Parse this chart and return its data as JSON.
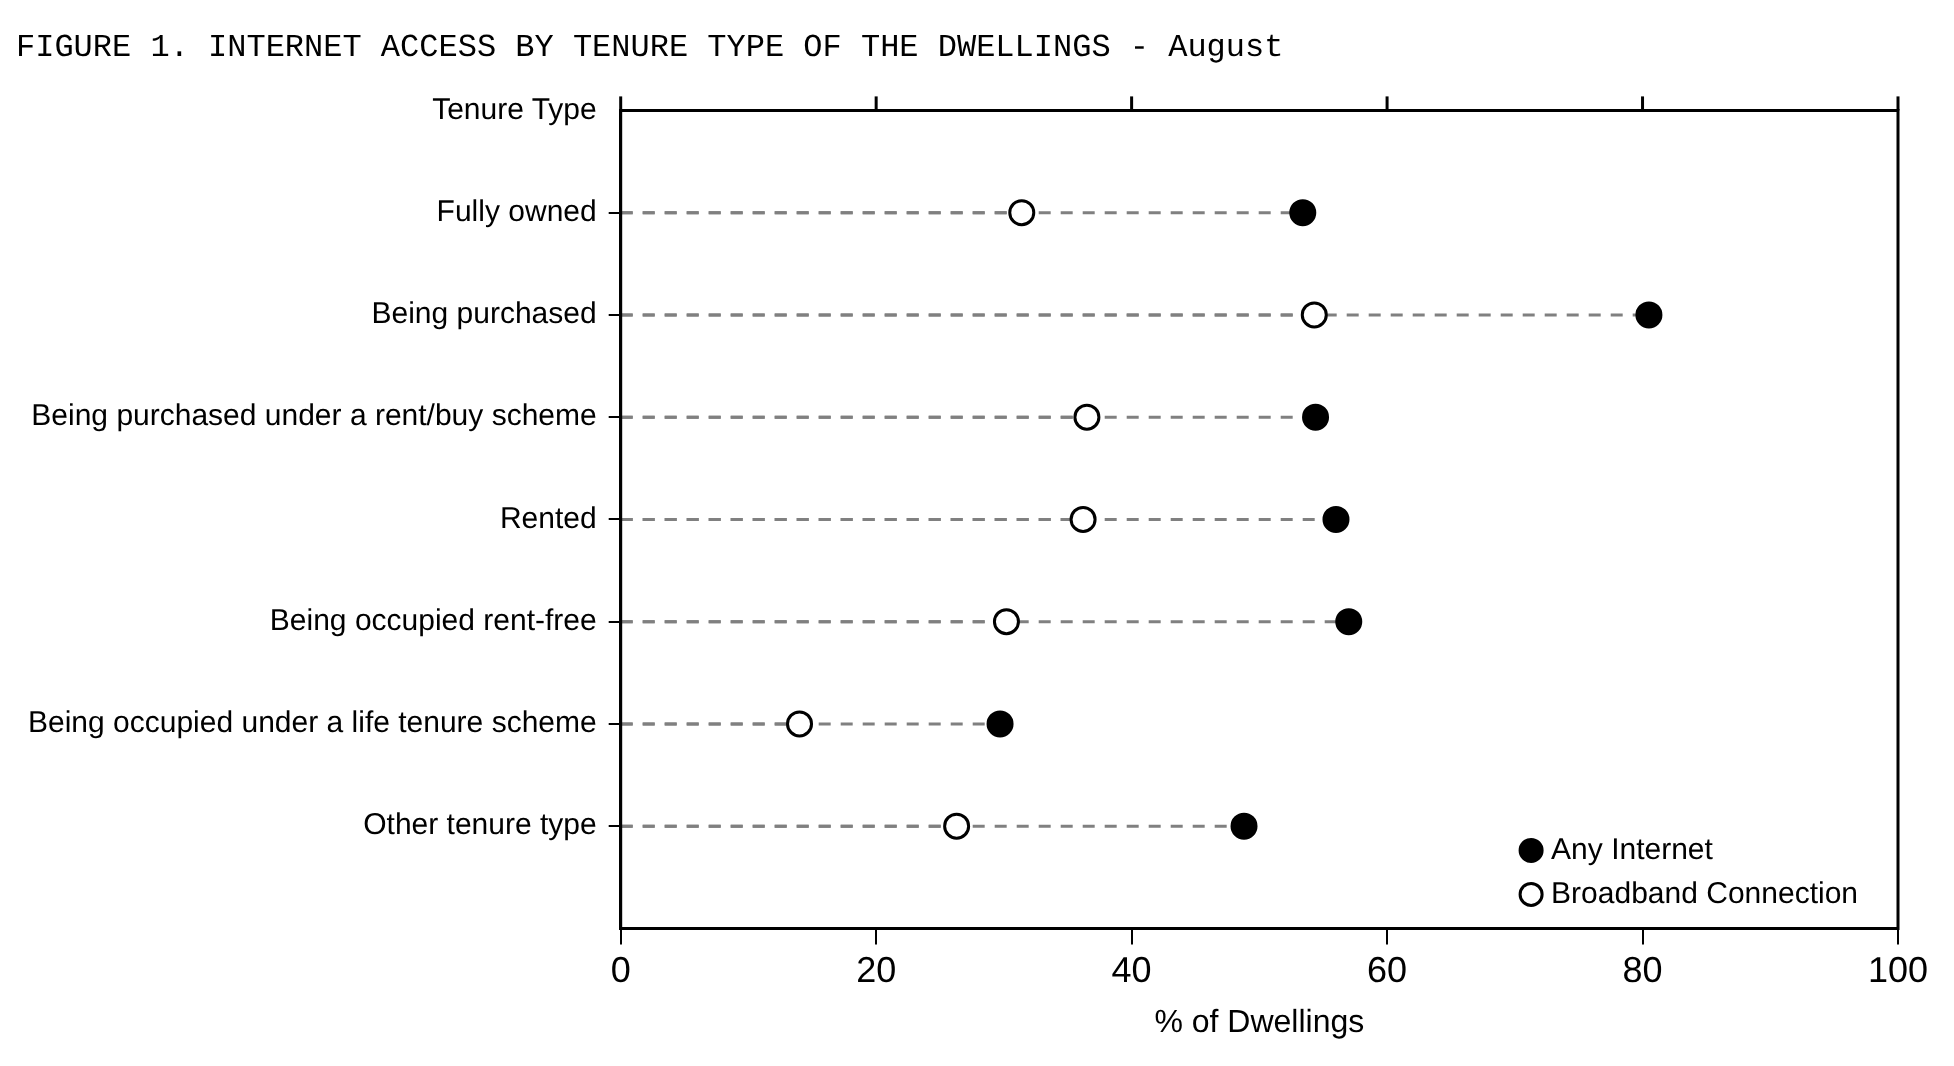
{
  "chart_data": {
    "type": "lollipop",
    "title": "FIGURE 1. INTERNET ACCESS BY TENURE TYPE OF THE DWELLINGS - August",
    "ylabel": "Tenure Type",
    "xlabel": "% of Dwellings",
    "orientation": "horizontal",
    "categories": [
      "Fully owned",
      "Being purchased",
      "Being purchased under a rent/buy scheme",
      "Rented",
      "Being occupied rent-free",
      "Being occupied under a life tenure scheme",
      "Other tenure type"
    ],
    "series": [
      {
        "name": "Any Internet",
        "color": "#000000",
        "values": [
          53.4,
          80.5,
          54.4,
          56.0,
          57.0,
          29.7,
          48.8
        ]
      },
      {
        "name": "Broadband Connection",
        "color": "#ffffff",
        "values": [
          31.4,
          54.3,
          36.5,
          36.2,
          30.2,
          14.0,
          26.3
        ]
      }
    ],
    "xlim": [
      0,
      100
    ],
    "xticks": [
      0,
      20,
      40,
      60,
      80,
      100
    ],
    "legend": "bottom right",
    "marker": "circle",
    "line_style": "dashed"
  }
}
